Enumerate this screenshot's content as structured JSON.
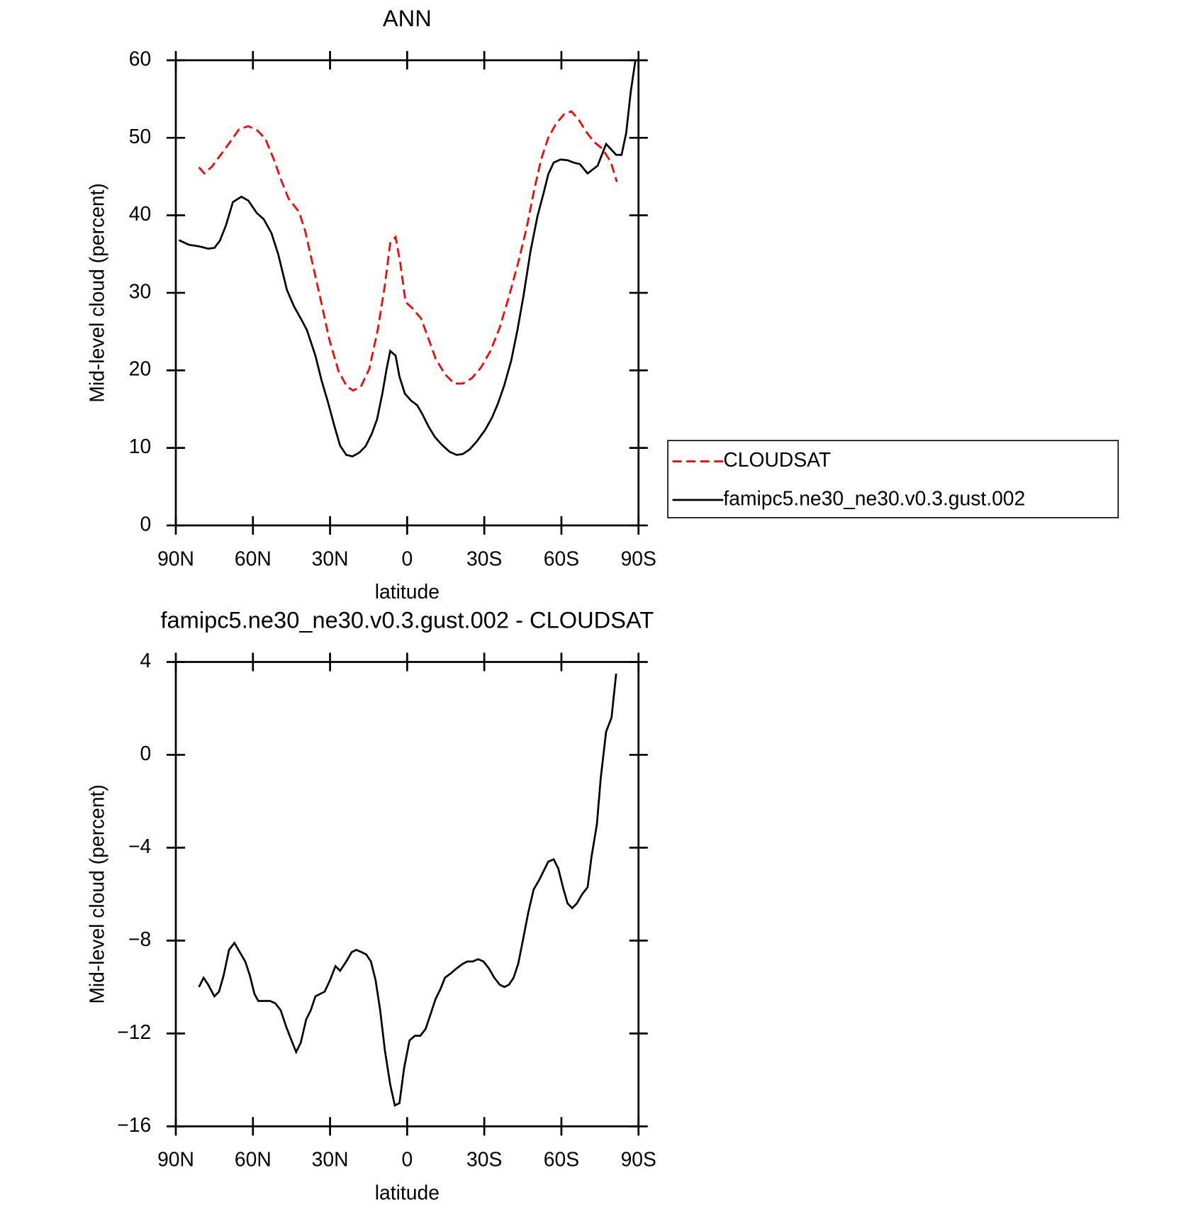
{
  "chart_data": [
    {
      "type": "line",
      "title": "ANN",
      "xlabel": "latitude",
      "ylabel": "Mid-level cloud (percent)",
      "xlim": [
        90,
        -90
      ],
      "xticks": [
        {
          "value": 90,
          "label": "90N"
        },
        {
          "value": 60,
          "label": "60N"
        },
        {
          "value": 30,
          "label": "30N"
        },
        0,
        {
          "value": -30,
          "label": "30S"
        },
        {
          "value": -60,
          "label": "60S"
        },
        {
          "value": -90,
          "label": "90S"
        }
      ],
      "ylim": [
        0,
        60
      ],
      "yticks": [
        0,
        10,
        20,
        30,
        40,
        50,
        60
      ],
      "legend": "right",
      "series": [
        {
          "name": "CLOUDSAT",
          "color": "#ff0000",
          "linestyle": "dashed",
          "x": [
            81,
            78.9,
            75.9,
            72.3,
            69,
            65.4,
            61.8,
            58.5,
            55.2,
            51.6,
            49.2,
            46.2,
            42,
            39.6,
            36.9,
            33.9,
            30.3,
            26.7,
            23.4,
            21,
            18,
            14.7,
            11.4,
            8.7,
            6.6,
            4.5,
            2.7,
            0.6,
            -1.8,
            -5.4,
            -8.4,
            -11.1,
            -14.7,
            -18.3,
            -21.6,
            -25.2,
            -28.8,
            -32.4,
            -36,
            -39.6,
            -43.2,
            -46.5,
            -49.5,
            -52.2,
            -54.9,
            -57.9,
            -61.2,
            -63.9,
            -66.6,
            -69.6,
            -72.6,
            -75.9,
            -79.2,
            -81.6
          ],
          "values": [
            46.2,
            45.4,
            46.3,
            47.9,
            49.4,
            51.1,
            51.5,
            51.0,
            49.9,
            47.0,
            44.7,
            42.2,
            40.4,
            37.9,
            33.9,
            29.5,
            24.0,
            19.9,
            17.9,
            17.4,
            17.9,
            20.2,
            25.3,
            30.9,
            36.4,
            37.2,
            33.9,
            28.8,
            28.1,
            26.7,
            24.0,
            21.5,
            19.5,
            18.3,
            18.3,
            19.0,
            20.4,
            22.5,
            25.5,
            29.5,
            33.9,
            38.4,
            43.4,
            47.3,
            50.0,
            51.8,
            53.1,
            53.4,
            52.4,
            50.8,
            49.5,
            48.6,
            46.9,
            44.3
          ]
        },
        {
          "name": "famipc5.ne30_ne30.v0.3.gust.002",
          "color": "#000000",
          "linestyle": "solid",
          "x": [
            88.8,
            84.9,
            81,
            77.4,
            75,
            72.9,
            70.5,
            67.8,
            64.5,
            61.8,
            58.5,
            55.8,
            52.8,
            50.1,
            46.8,
            44.1,
            41.4,
            39,
            35.7,
            33.3,
            30.9,
            28.2,
            26.1,
            23.7,
            21.3,
            18.6,
            16.2,
            13.8,
            11.7,
            9.6,
            8.1,
            6.6,
            4.5,
            3,
            0.9,
            -1.5,
            -3.9,
            -6,
            -8.4,
            -10.8,
            -13.5,
            -16.5,
            -19.2,
            -21.6,
            -24.3,
            -27,
            -30.3,
            -33,
            -35.4,
            -37.8,
            -40.5,
            -42.9,
            -45.3,
            -48,
            -50.7,
            -53.1,
            -54.9,
            -57,
            -59.7,
            -62.4,
            -64.8,
            -67.2,
            -70.2,
            -74.1,
            -77.4,
            -81.3,
            -83.4,
            -85.2,
            -87,
            -88.8
          ],
          "values": [
            36.8,
            36.2,
            36.0,
            35.7,
            35.8,
            36.7,
            38.7,
            41.7,
            42.4,
            41.9,
            40.3,
            39.5,
            37.7,
            34.9,
            30.4,
            28.3,
            26.7,
            25.2,
            21.9,
            18.7,
            16.0,
            12.7,
            10.3,
            9.1,
            8.9,
            9.4,
            10.2,
            11.8,
            13.7,
            17.1,
            20.0,
            22.5,
            21.9,
            19.2,
            17.0,
            16.1,
            15.5,
            14.3,
            12.7,
            11.4,
            10.4,
            9.5,
            9.1,
            9.2,
            9.8,
            10.8,
            12.3,
            13.9,
            15.8,
            18.1,
            21.3,
            25.2,
            29.7,
            35.4,
            39.9,
            42.9,
            45.3,
            46.8,
            47.2,
            47.1,
            46.8,
            46.6,
            45.4,
            46.4,
            49.2,
            47.8,
            47.8,
            50.6,
            56.0,
            60.0
          ]
        }
      ]
    },
    {
      "type": "line",
      "title": "famipc5.ne30_ne30.v0.3.gust.002 - CLOUDSAT",
      "xlabel": "latitude",
      "ylabel": "Mid-level cloud (percent)",
      "xlim": [
        90,
        -90
      ],
      "xticks": [
        {
          "value": 90,
          "label": "90N"
        },
        {
          "value": 60,
          "label": "60N"
        },
        {
          "value": 30,
          "label": "30N"
        },
        0,
        {
          "value": -30,
          "label": "30S"
        },
        {
          "value": -60,
          "label": "60S"
        },
        {
          "value": -90,
          "label": "90S"
        }
      ],
      "ylim": [
        -16,
        4
      ],
      "yticks": [
        {
          "value": -16,
          "label": "−16"
        },
        {
          "value": -12,
          "label": "−12"
        },
        {
          "value": -8,
          "label": "−8"
        },
        {
          "value": -4,
          "label": "−4"
        },
        0,
        4
      ],
      "series": [
        {
          "color": "#000000",
          "linestyle": "solid",
          "x": [
            81,
            79.2,
            77.4,
            75,
            73.2,
            71.4,
            69.3,
            67.2,
            65.1,
            63,
            61.2,
            59.4,
            57.9,
            55.8,
            53.4,
            51.3,
            49.2,
            47.1,
            45,
            43.2,
            41.4,
            39.3,
            37.5,
            35.7,
            33.9,
            32.1,
            30,
            27.9,
            26.1,
            23.7,
            21.6,
            19.8,
            17.7,
            15.9,
            14.1,
            12.3,
            10.5,
            8.7,
            6.6,
            4.8,
            3,
            1.2,
            -0.9,
            -3,
            -5.1,
            -7.2,
            -9.3,
            -11.1,
            -12.9,
            -14.7,
            -17.1,
            -19.2,
            -21.6,
            -23.4,
            -25.5,
            -27.6,
            -29.7,
            -31.8,
            -33.9,
            -36,
            -37.8,
            -39.6,
            -41.4,
            -43.2,
            -45,
            -47.1,
            -49.2,
            -51.3,
            -53.1,
            -54.9,
            -57,
            -58.8,
            -60.6,
            -62.4,
            -64.2,
            -66,
            -68.1,
            -70.2,
            -71.7,
            -73.8,
            -75.3,
            -77.4,
            -79.5,
            -81.3
          ],
          "values": [
            -10.0,
            -9.6,
            -9.9,
            -10.4,
            -10.2,
            -9.5,
            -8.4,
            -8.1,
            -8.5,
            -8.9,
            -9.5,
            -10.3,
            -10.6,
            -10.6,
            -10.6,
            -10.7,
            -11.0,
            -11.7,
            -12.3,
            -12.8,
            -12.4,
            -11.4,
            -11.0,
            -10.4,
            -10.3,
            -10.2,
            -9.7,
            -9.1,
            -9.3,
            -8.9,
            -8.5,
            -8.4,
            -8.5,
            -8.6,
            -8.9,
            -9.7,
            -11.0,
            -12.7,
            -14.2,
            -15.1,
            -15.0,
            -13.5,
            -12.3,
            -12.1,
            -12.1,
            -11.8,
            -11.1,
            -10.5,
            -10.1,
            -9.6,
            -9.4,
            -9.2,
            -9.0,
            -8.9,
            -8.9,
            -8.8,
            -8.9,
            -9.2,
            -9.6,
            -9.9,
            -10.0,
            -9.9,
            -9.6,
            -9.0,
            -8.0,
            -6.8,
            -5.8,
            -5.4,
            -5.0,
            -4.6,
            -4.5,
            -4.9,
            -5.7,
            -6.4,
            -6.6,
            -6.4,
            -6.0,
            -5.7,
            -4.4,
            -3.0,
            -1.0,
            1.0,
            1.6,
            3.5
          ]
        }
      ]
    }
  ]
}
